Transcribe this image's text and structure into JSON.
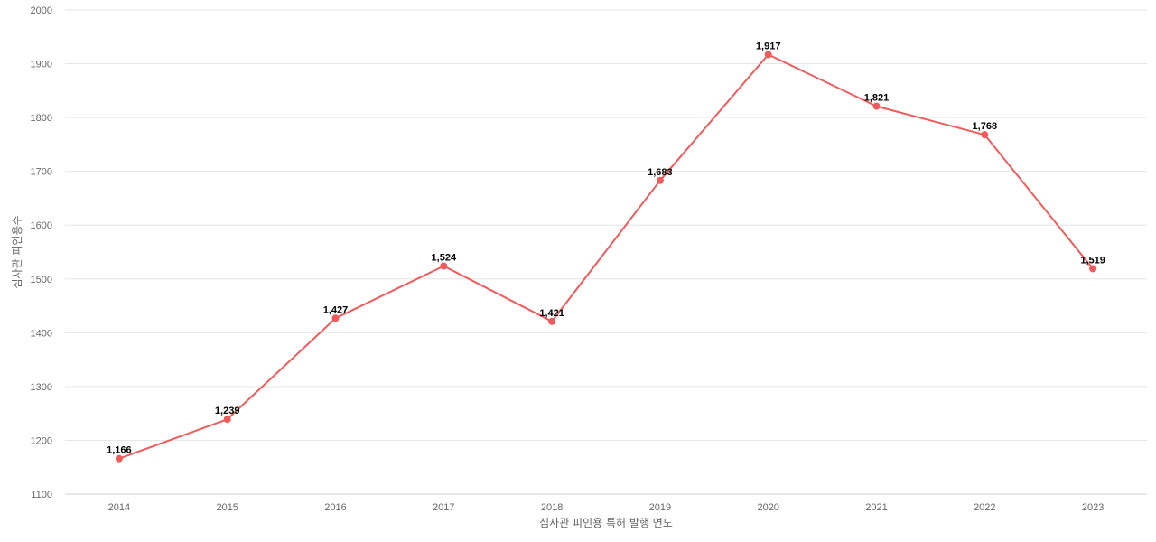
{
  "chart_data": {
    "type": "line",
    "title": "",
    "xlabel": "심사관 피인용 특허 발행 연도",
    "ylabel": "심사관 피인용수",
    "categories": [
      "2014",
      "2015",
      "2016",
      "2017",
      "2018",
      "2019",
      "2020",
      "2021",
      "2022",
      "2023"
    ],
    "series": [
      {
        "values": [
          1166,
          1239,
          1427,
          1524,
          1421,
          1683,
          1917,
          1821,
          1768,
          1519
        ],
        "labels": [
          "1,166",
          "1,239",
          "1,427",
          "1,524",
          "1,421",
          "1,683",
          "1,917",
          "1,821",
          "1,768",
          "1,519"
        ],
        "color": "#f05a5a"
      }
    ],
    "ylim": [
      1100,
      2000
    ],
    "yticks": [
      "1100",
      "1200",
      "1300",
      "1400",
      "1500",
      "1600",
      "1700",
      "1800",
      "1900",
      "2000"
    ],
    "grid": true,
    "legend": "none"
  }
}
